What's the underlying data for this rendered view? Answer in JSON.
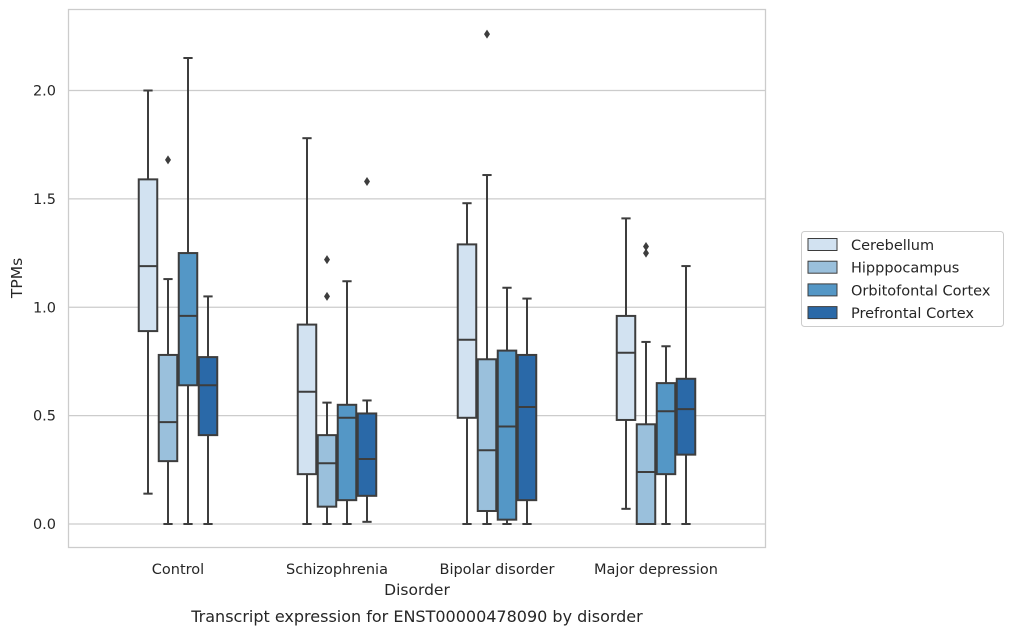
{
  "chart_data": {
    "type": "box",
    "title": "",
    "caption": "Transcript expression for ENST00000478090 by disorder",
    "xlabel": "Disorder",
    "ylabel": "TPMs",
    "ylim": [
      -0.11,
      2.39
    ],
    "yticks": [
      0.0,
      0.5,
      1.0,
      1.5,
      2.0
    ],
    "ytick_labels": [
      "0.0",
      "0.5",
      "1.0",
      "1.5",
      "2.0"
    ],
    "grid": "horizontal",
    "legend_placement": "right",
    "categories": [
      "Control",
      "Schizophrenia",
      "Bipolar disorder",
      "Major depression"
    ],
    "series": [
      {
        "name": "Cerebellum",
        "color": "#d2e2f1",
        "boxes": [
          {
            "whislo": 0.14,
            "q1": 0.89,
            "med": 1.19,
            "q3": 1.59,
            "whishi": 2.0,
            "fliers": []
          },
          {
            "whislo": 0.0,
            "q1": 0.23,
            "med": 0.61,
            "q3": 0.92,
            "whishi": 1.78,
            "fliers": []
          },
          {
            "whislo": 0.0,
            "q1": 0.49,
            "med": 0.85,
            "q3": 1.29,
            "whishi": 1.48,
            "fliers": []
          },
          {
            "whislo": 0.07,
            "q1": 0.48,
            "med": 0.79,
            "q3": 0.96,
            "whishi": 1.41,
            "fliers": []
          }
        ]
      },
      {
        "name": "Hipppocampus",
        "color": "#9ac0dc",
        "boxes": [
          {
            "whislo": 0.0,
            "q1": 0.29,
            "med": 0.47,
            "q3": 0.78,
            "whishi": 1.13,
            "fliers": [
              1.68
            ]
          },
          {
            "whislo": 0.0,
            "q1": 0.08,
            "med": 0.28,
            "q3": 0.41,
            "whishi": 0.56,
            "fliers": [
              1.05,
              1.22
            ]
          },
          {
            "whislo": 0.0,
            "q1": 0.06,
            "med": 0.34,
            "q3": 0.76,
            "whishi": 1.61,
            "fliers": [
              2.26
            ]
          },
          {
            "whislo": 0.0,
            "q1": 0.0,
            "med": 0.24,
            "q3": 0.46,
            "whishi": 0.84,
            "fliers": [
              1.25,
              1.28
            ]
          }
        ]
      },
      {
        "name": "Orbitofontal Cortex",
        "color": "#5497c6",
        "boxes": [
          {
            "whislo": 0.0,
            "q1": 0.64,
            "med": 0.96,
            "q3": 1.25,
            "whishi": 2.15,
            "fliers": []
          },
          {
            "whislo": 0.0,
            "q1": 0.11,
            "med": 0.49,
            "q3": 0.55,
            "whishi": 1.12,
            "fliers": []
          },
          {
            "whislo": 0.0,
            "q1": 0.02,
            "med": 0.45,
            "q3": 0.8,
            "whishi": 1.09,
            "fliers": []
          },
          {
            "whislo": 0.0,
            "q1": 0.23,
            "med": 0.52,
            "q3": 0.65,
            "whishi": 0.82,
            "fliers": []
          }
        ]
      },
      {
        "name": "Prefrontal Cortex",
        "color": "#2a69a8",
        "boxes": [
          {
            "whislo": 0.0,
            "q1": 0.41,
            "med": 0.64,
            "q3": 0.77,
            "whishi": 1.05,
            "fliers": []
          },
          {
            "whislo": 0.01,
            "q1": 0.13,
            "med": 0.3,
            "q3": 0.51,
            "whishi": 0.57,
            "fliers": [
              1.58
            ]
          },
          {
            "whislo": 0.0,
            "q1": 0.11,
            "med": 0.54,
            "q3": 0.78,
            "whishi": 1.04,
            "fliers": []
          },
          {
            "whislo": 0.0,
            "q1": 0.32,
            "med": 0.53,
            "q3": 0.67,
            "whishi": 1.19,
            "fliers": []
          }
        ]
      }
    ],
    "colors": {
      "box_edge": "#3d3d3d",
      "grid": "#cccccc",
      "frame": "#cccccc",
      "background": "#ffffff"
    }
  }
}
